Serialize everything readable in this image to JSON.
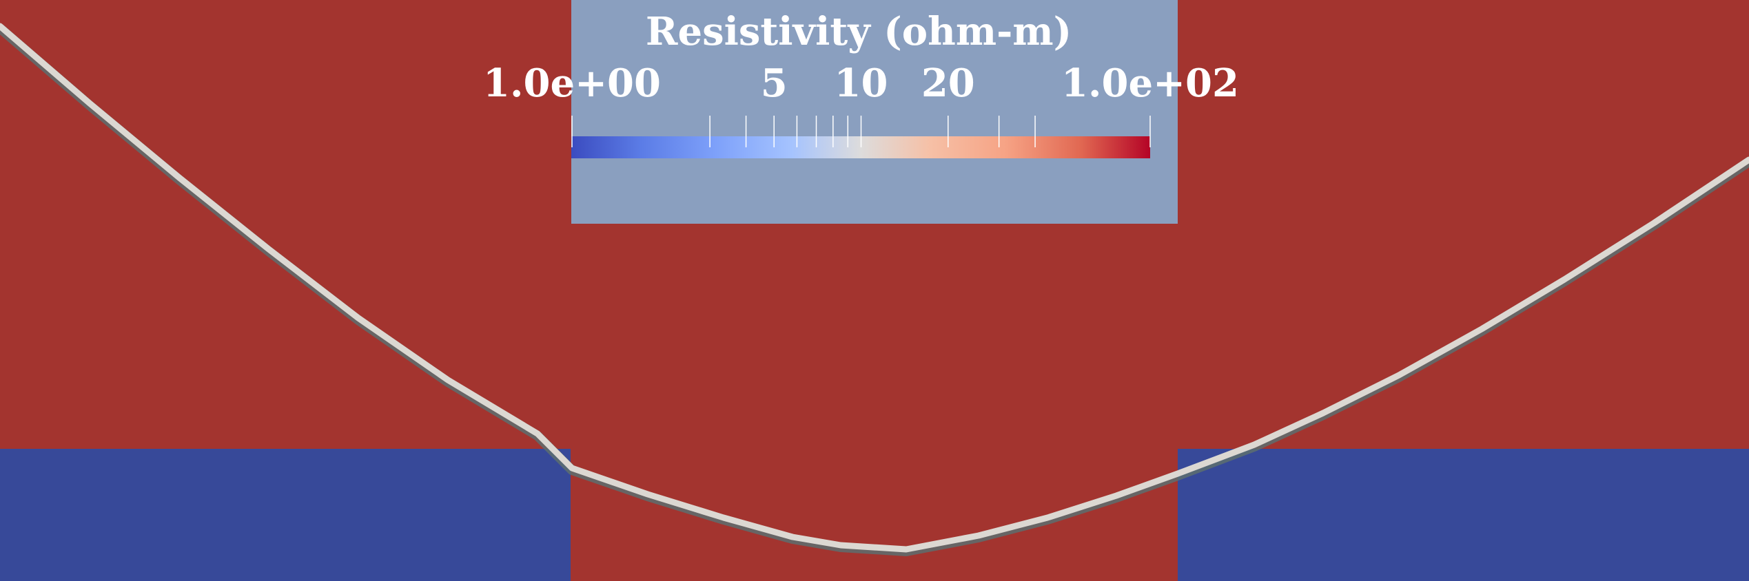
{
  "chart_data": {
    "type": "heatmap",
    "title": "Resistivity (ohm-m)",
    "colorbar": {
      "title": "Resistivity (ohm-m)",
      "scale": "log",
      "range": [
        1,
        100
      ],
      "colormap": "coolwarm",
      "labeled_ticks": [
        {
          "value": 1,
          "label": "1.0e+00"
        },
        {
          "value": 5,
          "label": "5"
        },
        {
          "value": 10,
          "label": "10"
        },
        {
          "value": 20,
          "label": "20"
        },
        {
          "value": 100,
          "label": "1.0e+02"
        }
      ],
      "minor_ticks": [
        1,
        3,
        4,
        5,
        6,
        7,
        8,
        9,
        10,
        20,
        30,
        40,
        100
      ]
    },
    "regions": [
      {
        "region": "background",
        "resistivity": 100,
        "color": "#a3342f"
      },
      {
        "region": "lower-left-block",
        "resistivity": 1,
        "color": "#374999"
      },
      {
        "region": "lower-right-block",
        "resistivity": 1,
        "color": "#374999"
      }
    ],
    "legend_placement": "top-center",
    "grid": false
  },
  "colors": {
    "background": "#a3342f",
    "low_block": "#374999",
    "legend_panel": "#8a9fbf",
    "curve": "#dcd8d2",
    "label_text": "#ffffff"
  }
}
